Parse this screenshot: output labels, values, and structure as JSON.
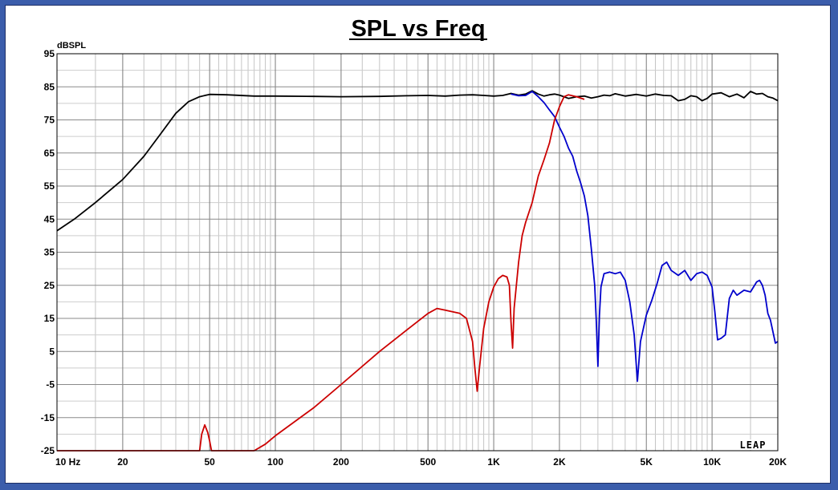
{
  "chart_data": {
    "type": "line",
    "title": "SPL vs Freq",
    "ylabel": "dBSPL",
    "xlabel": "",
    "x_scale": "log",
    "xlim": [
      10,
      20000
    ],
    "ylim": [
      -25,
      95
    ],
    "grid": true,
    "legend": "none",
    "logo_text": "LEAP",
    "x_ticks": [
      {
        "value": 10,
        "label": "10 Hz"
      },
      {
        "value": 20,
        "label": "20"
      },
      {
        "value": 50,
        "label": "50"
      },
      {
        "value": 100,
        "label": "100"
      },
      {
        "value": 200,
        "label": "200"
      },
      {
        "value": 500,
        "label": "500"
      },
      {
        "value": 1000,
        "label": "1K"
      },
      {
        "value": 2000,
        "label": "2K"
      },
      {
        "value": 5000,
        "label": "5K"
      },
      {
        "value": 10000,
        "label": "10K"
      },
      {
        "value": 20000,
        "label": "20K"
      }
    ],
    "y_ticks": [
      95,
      85,
      75,
      65,
      55,
      45,
      35,
      25,
      15,
      5,
      -5,
      -15,
      -25
    ],
    "series": [
      {
        "color": "#000000",
        "points": [
          [
            10,
            41.5
          ],
          [
            12,
            45
          ],
          [
            15,
            50
          ],
          [
            20,
            57
          ],
          [
            25,
            64
          ],
          [
            30,
            71
          ],
          [
            35,
            77
          ],
          [
            40,
            80.5
          ],
          [
            45,
            82
          ],
          [
            50,
            82.7
          ],
          [
            60,
            82.6
          ],
          [
            80,
            82.2
          ],
          [
            100,
            82.2
          ],
          [
            150,
            82.1
          ],
          [
            200,
            82.0
          ],
          [
            300,
            82.1
          ],
          [
            400,
            82.3
          ],
          [
            500,
            82.4
          ],
          [
            600,
            82.2
          ],
          [
            700,
            82.5
          ],
          [
            800,
            82.6
          ],
          [
            900,
            82.4
          ],
          [
            1000,
            82.2
          ],
          [
            1100,
            82.4
          ],
          [
            1200,
            83.0
          ],
          [
            1300,
            82.5
          ],
          [
            1400,
            82.8
          ],
          [
            1500,
            83.8
          ],
          [
            1600,
            82.8
          ],
          [
            1700,
            82.2
          ],
          [
            1800,
            82.6
          ],
          [
            1900,
            82.8
          ],
          [
            2000,
            82.5
          ],
          [
            2200,
            81.5
          ],
          [
            2400,
            82.0
          ],
          [
            2600,
            82.2
          ],
          [
            2800,
            81.6
          ],
          [
            3000,
            82.0
          ],
          [
            3200,
            82.5
          ],
          [
            3400,
            82.3
          ],
          [
            3600,
            82.9
          ],
          [
            4000,
            82.2
          ],
          [
            4500,
            82.7
          ],
          [
            5000,
            82.2
          ],
          [
            5500,
            82.8
          ],
          [
            6000,
            82.4
          ],
          [
            6500,
            82.3
          ],
          [
            7000,
            80.8
          ],
          [
            7500,
            81.2
          ],
          [
            8000,
            82.3
          ],
          [
            8500,
            82.0
          ],
          [
            9000,
            80.8
          ],
          [
            9500,
            81.5
          ],
          [
            10000,
            82.8
          ],
          [
            11000,
            83.2
          ],
          [
            12000,
            82.0
          ],
          [
            13000,
            82.8
          ],
          [
            14000,
            81.7
          ],
          [
            15000,
            83.6
          ],
          [
            16000,
            82.8
          ],
          [
            17000,
            83.0
          ],
          [
            18000,
            82.0
          ],
          [
            19000,
            81.6
          ],
          [
            20000,
            80.8
          ]
        ]
      },
      {
        "color": "#0000cc",
        "points": [
          [
            1200,
            82.8
          ],
          [
            1300,
            82.3
          ],
          [
            1400,
            82.4
          ],
          [
            1500,
            83.6
          ],
          [
            1600,
            82.0
          ],
          [
            1700,
            80.2
          ],
          [
            1800,
            78.0
          ],
          [
            1900,
            76.0
          ],
          [
            2000,
            72.8
          ],
          [
            2100,
            70.0
          ],
          [
            2200,
            66.5
          ],
          [
            2300,
            64.0
          ],
          [
            2400,
            59.5
          ],
          [
            2500,
            56.0
          ],
          [
            2600,
            52.0
          ],
          [
            2700,
            46.0
          ],
          [
            2800,
            36.0
          ],
          [
            2900,
            25.0
          ],
          [
            2950,
            14.0
          ],
          [
            3000,
            0.5
          ],
          [
            3050,
            16.0
          ],
          [
            3100,
            24.5
          ],
          [
            3200,
            28.5
          ],
          [
            3400,
            29.0
          ],
          [
            3600,
            28.5
          ],
          [
            3800,
            29.0
          ],
          [
            4000,
            26.5
          ],
          [
            4200,
            20.0
          ],
          [
            4400,
            10.0
          ],
          [
            4550,
            -4.0
          ],
          [
            4700,
            8.0
          ],
          [
            5000,
            16.0
          ],
          [
            5300,
            20.5
          ],
          [
            5600,
            25.5
          ],
          [
            5900,
            31.0
          ],
          [
            6200,
            32.0
          ],
          [
            6500,
            29.5
          ],
          [
            7000,
            28.0
          ],
          [
            7500,
            29.5
          ],
          [
            8000,
            26.5
          ],
          [
            8500,
            28.5
          ],
          [
            9000,
            29.0
          ],
          [
            9500,
            28.0
          ],
          [
            10000,
            24.5
          ],
          [
            10300,
            17.0
          ],
          [
            10600,
            8.5
          ],
          [
            11000,
            9.0
          ],
          [
            11500,
            10.0
          ],
          [
            12000,
            21.0
          ],
          [
            12500,
            23.5
          ],
          [
            13000,
            22.0
          ],
          [
            14000,
            23.5
          ],
          [
            15000,
            23.0
          ],
          [
            16000,
            26.0
          ],
          [
            16500,
            26.5
          ],
          [
            17000,
            25.0
          ],
          [
            17500,
            22.0
          ],
          [
            18000,
            16.5
          ],
          [
            18500,
            14.5
          ],
          [
            19000,
            11.0
          ],
          [
            19500,
            7.5
          ],
          [
            20000,
            8.0
          ]
        ]
      },
      {
        "color": "#cc0000",
        "points": [
          [
            10,
            -25
          ],
          [
            45,
            -25
          ],
          [
            46,
            -20
          ],
          [
            47.5,
            -17.2
          ],
          [
            49,
            -19.5
          ],
          [
            50,
            -22
          ],
          [
            51,
            -25
          ],
          [
            80,
            -25
          ],
          [
            90,
            -23
          ],
          [
            100,
            -20.5
          ],
          [
            150,
            -12
          ],
          [
            200,
            -5
          ],
          [
            300,
            5
          ],
          [
            400,
            11.5
          ],
          [
            500,
            16.5
          ],
          [
            550,
            18
          ],
          [
            600,
            17.5
          ],
          [
            700,
            16.5
          ],
          [
            750,
            15
          ],
          [
            800,
            8
          ],
          [
            820,
            0
          ],
          [
            840,
            -7
          ],
          [
            860,
            0
          ],
          [
            900,
            12
          ],
          [
            950,
            20
          ],
          [
            1000,
            24.5
          ],
          [
            1050,
            27
          ],
          [
            1100,
            28
          ],
          [
            1150,
            27.5
          ],
          [
            1180,
            25
          ],
          [
            1200,
            14
          ],
          [
            1220,
            6
          ],
          [
            1240,
            18
          ],
          [
            1300,
            32
          ],
          [
            1350,
            40
          ],
          [
            1400,
            44
          ],
          [
            1500,
            50
          ],
          [
            1600,
            58
          ],
          [
            1700,
            63
          ],
          [
            1800,
            68
          ],
          [
            1900,
            75
          ],
          [
            2000,
            79
          ],
          [
            2100,
            82
          ],
          [
            2200,
            82.6
          ],
          [
            2400,
            82.0
          ],
          [
            2600,
            81.2
          ]
        ]
      }
    ]
  }
}
